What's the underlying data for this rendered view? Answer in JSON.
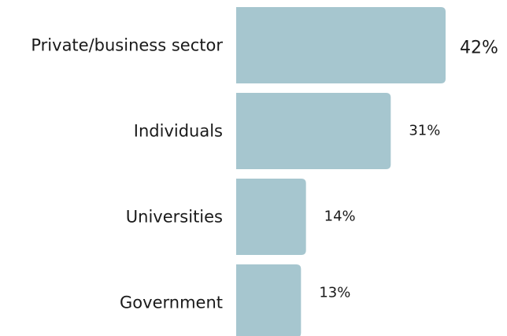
{
  "chart_data": {
    "type": "bar",
    "orientation": "horizontal",
    "categories": [
      "Private/business sector",
      "Individuals",
      "Universities",
      "Government"
    ],
    "values": [
      42,
      31,
      14,
      13
    ],
    "value_labels": [
      "42%",
      "31%",
      "14%",
      "13%"
    ],
    "color": "#a6c6cf"
  }
}
